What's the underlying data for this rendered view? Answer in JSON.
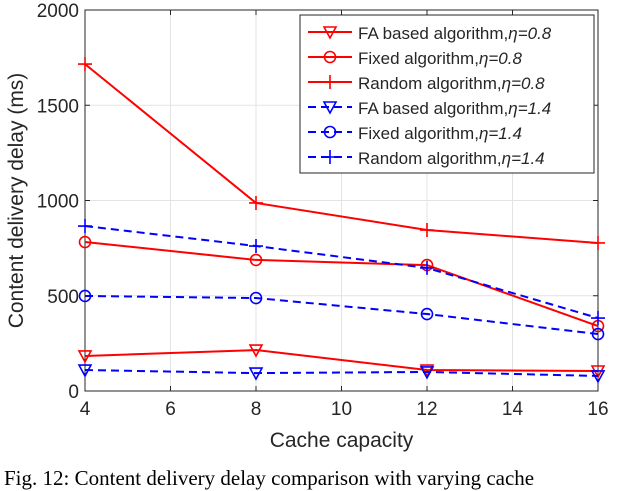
{
  "chart_data": {
    "type": "line",
    "xlabel": "Cache capacity",
    "ylabel": "Content delivery delay (ms)",
    "xlim": [
      4,
      16
    ],
    "ylim": [
      0,
      2000
    ],
    "xticks": [
      4,
      6,
      8,
      10,
      12,
      14,
      16
    ],
    "yticks": [
      0,
      500,
      1000,
      1500,
      2000
    ],
    "grid": true,
    "legend_position": "top-right",
    "x": [
      4,
      8,
      12,
      16
    ],
    "series": [
      {
        "name": "FA based algorithm,",
        "eta": "η=0.8",
        "color": "#ff0000",
        "dash": false,
        "marker": "triangle-down",
        "values": [
          184,
          215,
          110,
          105
        ]
      },
      {
        "name": "Fixed algorithm,",
        "eta": "η=0.8",
        "color": "#ff0000",
        "dash": false,
        "marker": "circle",
        "values": [
          782,
          688,
          661,
          341
        ]
      },
      {
        "name": "Random algorithm,",
        "eta": "η=0.8",
        "color": "#ff0000",
        "dash": false,
        "marker": "plus",
        "values": [
          1716,
          987,
          845,
          777
        ]
      },
      {
        "name": "FA based algorithm,",
        "eta": "η=1.4",
        "color": "#0000ff",
        "dash": true,
        "marker": "triangle-down",
        "values": [
          110,
          94,
          100,
          79
        ]
      },
      {
        "name": "Fixed algorithm,",
        "eta": "η=1.4",
        "color": "#0000ff",
        "dash": true,
        "marker": "circle",
        "values": [
          499,
          488,
          404,
          299
        ]
      },
      {
        "name": "Random algorithm,",
        "eta": "η=1.4",
        "color": "#0000ff",
        "dash": true,
        "marker": "plus",
        "values": [
          866,
          761,
          646,
          383
        ]
      }
    ]
  },
  "caption": "Fig. 12: Content delivery delay comparison with varying cache"
}
